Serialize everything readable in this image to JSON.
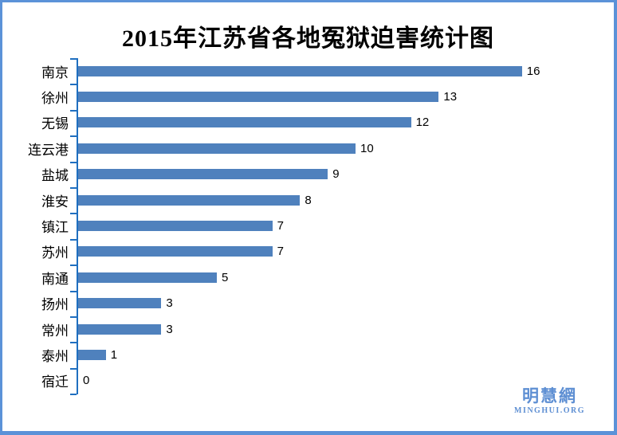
{
  "title": "2015年江苏省各地冤狱迫害统计图",
  "frame": {
    "border_color": "#5B92D8",
    "background": "#FFFFFF"
  },
  "chart_data": {
    "type": "bar",
    "orientation": "horizontal",
    "title": "2015年江苏省各地冤狱迫害统计图",
    "categories": [
      "南京",
      "徐州",
      "无锡",
      "连云港",
      "盐城",
      "淮安",
      "镇江",
      "苏州",
      "南通",
      "扬州",
      "常州",
      "泰州",
      "宿迁"
    ],
    "values": [
      16,
      13,
      12,
      10,
      9,
      8,
      7,
      7,
      5,
      3,
      3,
      1,
      0
    ],
    "xlabel": "",
    "ylabel": "",
    "xlim": [
      0,
      16
    ],
    "grid": false,
    "legend": false,
    "data_labels": true,
    "bar_color": "#4F81BD",
    "axis_color": "#1F6FC0",
    "label_color": "#000000"
  },
  "watermark": {
    "cjk": "明慧網",
    "latin": "MINGHUI.ORG",
    "color": "#5E8FD3"
  }
}
